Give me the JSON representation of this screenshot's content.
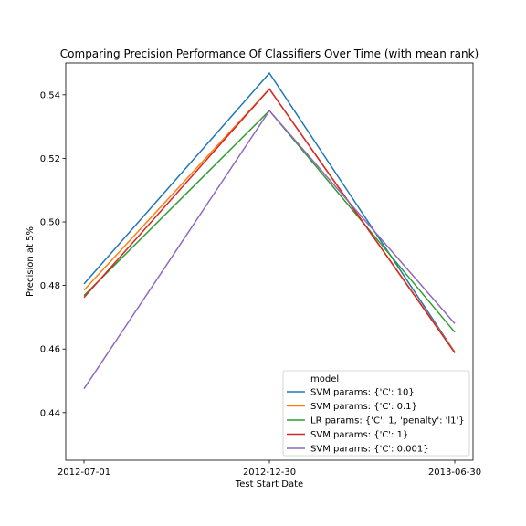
{
  "chart_data": {
    "type": "line",
    "title": "Comparing Precision Performance Of Classifiers Over Time (with mean rank)",
    "xlabel": "Test Start Date",
    "ylabel": "Precision at 5%",
    "categories": [
      "2012-07-01",
      "2012-12-30",
      "2013-06-30"
    ],
    "ylim": [
      0.425,
      0.55
    ],
    "yticks": [
      "0.44",
      "0.46",
      "0.48",
      "0.50",
      "0.52",
      "0.54"
    ],
    "grid": false,
    "legend": {
      "title": "model",
      "placement": "lower-right"
    },
    "series": [
      {
        "name": "SVM params: {'C': 10}",
        "color": "#1f77b4",
        "values": [
          0.4805,
          0.5468,
          0.459
        ]
      },
      {
        "name": "SVM params: {'C': 0.1}",
        "color": "#ff7f0e",
        "values": [
          0.4785,
          0.5418,
          0.459
        ]
      },
      {
        "name": "LR params: {'C': 1, 'penalty': 'l1'}",
        "color": "#2ca02c",
        "values": [
          0.4768,
          0.535,
          0.4653
        ]
      },
      {
        "name": "SVM params: {'C': 1}",
        "color": "#d62728",
        "values": [
          0.4762,
          0.5418,
          0.4588
        ]
      },
      {
        "name": "SVM params: {'C': 0.001}",
        "color": "#9467bd",
        "values": [
          0.4475,
          0.535,
          0.468
        ]
      }
    ]
  }
}
